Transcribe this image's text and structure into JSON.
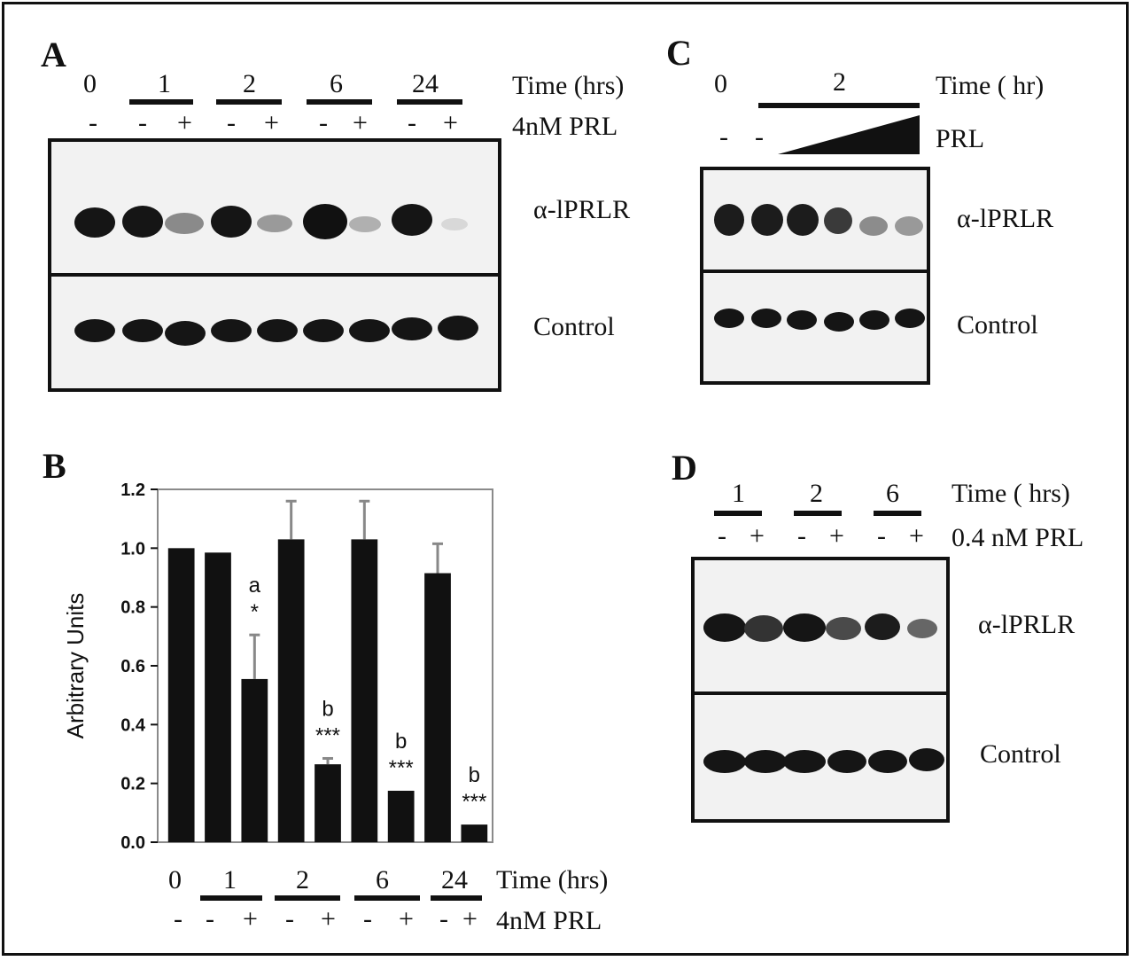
{
  "panels": {
    "A": {
      "label": "A",
      "time_header": "Time (hrs)",
      "time_points": [
        "0",
        "1",
        "2",
        "6",
        "24"
      ],
      "treatment_label": "4nM PRL",
      "signs": [
        "-",
        "-",
        "+",
        "-",
        "+",
        "-",
        "+",
        "-",
        "+"
      ],
      "blot_labels": [
        "α-lPRLR",
        "Control"
      ]
    },
    "B": {
      "label": "B",
      "time_header": "Time (hrs)",
      "time_points": [
        "0",
        "1",
        "2",
        "6",
        "24"
      ],
      "treatment_label": "4nM PRL",
      "signs": [
        "-",
        "-",
        "+",
        "-",
        "+",
        "-",
        "+",
        "-",
        "+"
      ]
    },
    "C": {
      "label": "C",
      "time_header": "Time ( hr)",
      "time_points": [
        "0",
        "2"
      ],
      "treatment_label": "PRL",
      "signs": [
        "-",
        "-"
      ],
      "blot_labels": [
        "α-lPRLR",
        "Control"
      ]
    },
    "D": {
      "label": "D",
      "time_header": "Time ( hrs)",
      "time_points": [
        "1",
        "2",
        "6"
      ],
      "treatment_label": "0.4 nM PRL",
      "signs": [
        "-",
        "+",
        "-",
        "+",
        "-",
        "+"
      ],
      "blot_labels": [
        "α-lPRLR",
        "Control"
      ]
    }
  },
  "chart_data": {
    "type": "bar",
    "ylabel": "Arbitrary Units",
    "xlabel": "Time (hrs)",
    "ylim": [
      0,
      1.2
    ],
    "yticks": [
      "0.0",
      "0.2",
      "0.4",
      "0.6",
      "0.8",
      "1.0",
      "1.2"
    ],
    "bar_color": "#111111",
    "errorbar_color": "#888888",
    "values": [
      1.0,
      0.985,
      0.555,
      1.03,
      0.265,
      1.03,
      0.175,
      0.915,
      0.06
    ],
    "errors": [
      0,
      0,
      0.15,
      0.13,
      0.02,
      0.13,
      0,
      0.1,
      0
    ],
    "annotations": [
      {
        "bar": 2,
        "letter": "a",
        "stars": "*"
      },
      {
        "bar": 4,
        "letter": "b",
        "stars": "***"
      },
      {
        "bar": 6,
        "letter": "b",
        "stars": "***"
      },
      {
        "bar": 8,
        "letter": "b",
        "stars": "***"
      }
    ]
  }
}
